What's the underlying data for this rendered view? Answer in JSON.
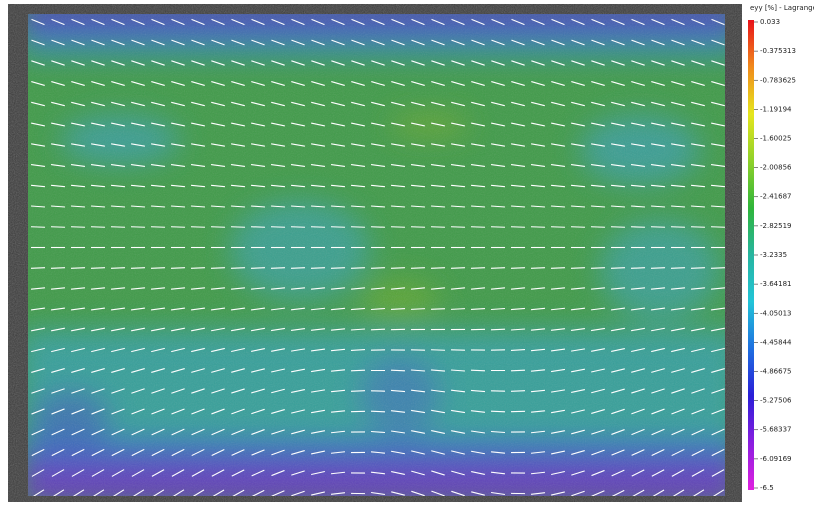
{
  "colorbar": {
    "title": "eyy [%] - Lagrange",
    "ticks": [
      0.033,
      -0.375313,
      -0.783625,
      -1.19194,
      -1.60025,
      -2.00856,
      -2.41687,
      -2.82519,
      -3.2335,
      -3.64181,
      -4.05013,
      -4.45844,
      -4.86675,
      -5.27506,
      -5.68337,
      -6.09169,
      -6.5
    ],
    "colors": [
      "#e8121a",
      "#f08a1c",
      "#e6e61e",
      "#8fd12a",
      "#2fb53a",
      "#27b5a0",
      "#22c4d8",
      "#1e6fe0",
      "#2a1ed8",
      "#8a1ee0",
      "#e020e0"
    ]
  }
}
